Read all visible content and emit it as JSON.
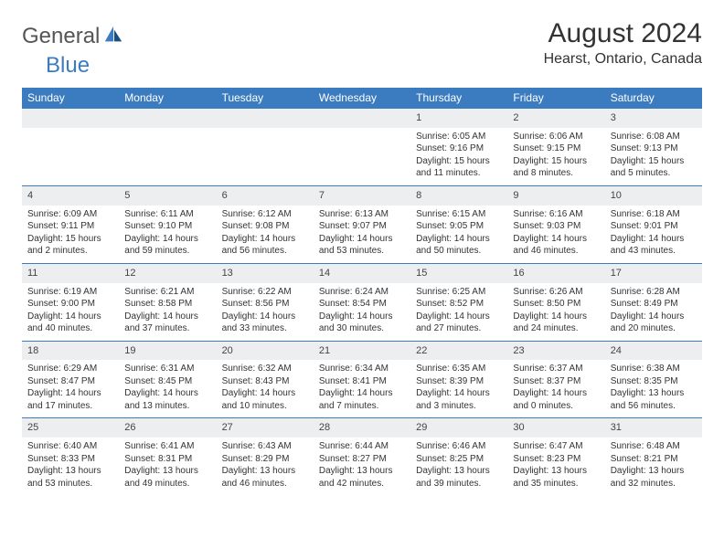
{
  "logo": {
    "general": "General",
    "blue": "Blue"
  },
  "title": "August 2024",
  "location": "Hearst, Ontario, Canada",
  "header_bg": "#3b7bbf",
  "daynum_bg": "#eceef0",
  "weekdays": [
    "Sunday",
    "Monday",
    "Tuesday",
    "Wednesday",
    "Thursday",
    "Friday",
    "Saturday"
  ],
  "weeks": [
    [
      null,
      null,
      null,
      null,
      {
        "n": "1",
        "sr": "6:05 AM",
        "ss": "9:16 PM",
        "dl": "15 hours and 11 minutes."
      },
      {
        "n": "2",
        "sr": "6:06 AM",
        "ss": "9:15 PM",
        "dl": "15 hours and 8 minutes."
      },
      {
        "n": "3",
        "sr": "6:08 AM",
        "ss": "9:13 PM",
        "dl": "15 hours and 5 minutes."
      }
    ],
    [
      {
        "n": "4",
        "sr": "6:09 AM",
        "ss": "9:11 PM",
        "dl": "15 hours and 2 minutes."
      },
      {
        "n": "5",
        "sr": "6:11 AM",
        "ss": "9:10 PM",
        "dl": "14 hours and 59 minutes."
      },
      {
        "n": "6",
        "sr": "6:12 AM",
        "ss": "9:08 PM",
        "dl": "14 hours and 56 minutes."
      },
      {
        "n": "7",
        "sr": "6:13 AM",
        "ss": "9:07 PM",
        "dl": "14 hours and 53 minutes."
      },
      {
        "n": "8",
        "sr": "6:15 AM",
        "ss": "9:05 PM",
        "dl": "14 hours and 50 minutes."
      },
      {
        "n": "9",
        "sr": "6:16 AM",
        "ss": "9:03 PM",
        "dl": "14 hours and 46 minutes."
      },
      {
        "n": "10",
        "sr": "6:18 AM",
        "ss": "9:01 PM",
        "dl": "14 hours and 43 minutes."
      }
    ],
    [
      {
        "n": "11",
        "sr": "6:19 AM",
        "ss": "9:00 PM",
        "dl": "14 hours and 40 minutes."
      },
      {
        "n": "12",
        "sr": "6:21 AM",
        "ss": "8:58 PM",
        "dl": "14 hours and 37 minutes."
      },
      {
        "n": "13",
        "sr": "6:22 AM",
        "ss": "8:56 PM",
        "dl": "14 hours and 33 minutes."
      },
      {
        "n": "14",
        "sr": "6:24 AM",
        "ss": "8:54 PM",
        "dl": "14 hours and 30 minutes."
      },
      {
        "n": "15",
        "sr": "6:25 AM",
        "ss": "8:52 PM",
        "dl": "14 hours and 27 minutes."
      },
      {
        "n": "16",
        "sr": "6:26 AM",
        "ss": "8:50 PM",
        "dl": "14 hours and 24 minutes."
      },
      {
        "n": "17",
        "sr": "6:28 AM",
        "ss": "8:49 PM",
        "dl": "14 hours and 20 minutes."
      }
    ],
    [
      {
        "n": "18",
        "sr": "6:29 AM",
        "ss": "8:47 PM",
        "dl": "14 hours and 17 minutes."
      },
      {
        "n": "19",
        "sr": "6:31 AM",
        "ss": "8:45 PM",
        "dl": "14 hours and 13 minutes."
      },
      {
        "n": "20",
        "sr": "6:32 AM",
        "ss": "8:43 PM",
        "dl": "14 hours and 10 minutes."
      },
      {
        "n": "21",
        "sr": "6:34 AM",
        "ss": "8:41 PM",
        "dl": "14 hours and 7 minutes."
      },
      {
        "n": "22",
        "sr": "6:35 AM",
        "ss": "8:39 PM",
        "dl": "14 hours and 3 minutes."
      },
      {
        "n": "23",
        "sr": "6:37 AM",
        "ss": "8:37 PM",
        "dl": "14 hours and 0 minutes."
      },
      {
        "n": "24",
        "sr": "6:38 AM",
        "ss": "8:35 PM",
        "dl": "13 hours and 56 minutes."
      }
    ],
    [
      {
        "n": "25",
        "sr": "6:40 AM",
        "ss": "8:33 PM",
        "dl": "13 hours and 53 minutes."
      },
      {
        "n": "26",
        "sr": "6:41 AM",
        "ss": "8:31 PM",
        "dl": "13 hours and 49 minutes."
      },
      {
        "n": "27",
        "sr": "6:43 AM",
        "ss": "8:29 PM",
        "dl": "13 hours and 46 minutes."
      },
      {
        "n": "28",
        "sr": "6:44 AM",
        "ss": "8:27 PM",
        "dl": "13 hours and 42 minutes."
      },
      {
        "n": "29",
        "sr": "6:46 AM",
        "ss": "8:25 PM",
        "dl": "13 hours and 39 minutes."
      },
      {
        "n": "30",
        "sr": "6:47 AM",
        "ss": "8:23 PM",
        "dl": "13 hours and 35 minutes."
      },
      {
        "n": "31",
        "sr": "6:48 AM",
        "ss": "8:21 PM",
        "dl": "13 hours and 32 minutes."
      }
    ]
  ],
  "labels": {
    "sunrise": "Sunrise: ",
    "sunset": "Sunset: ",
    "daylight": "Daylight: "
  }
}
